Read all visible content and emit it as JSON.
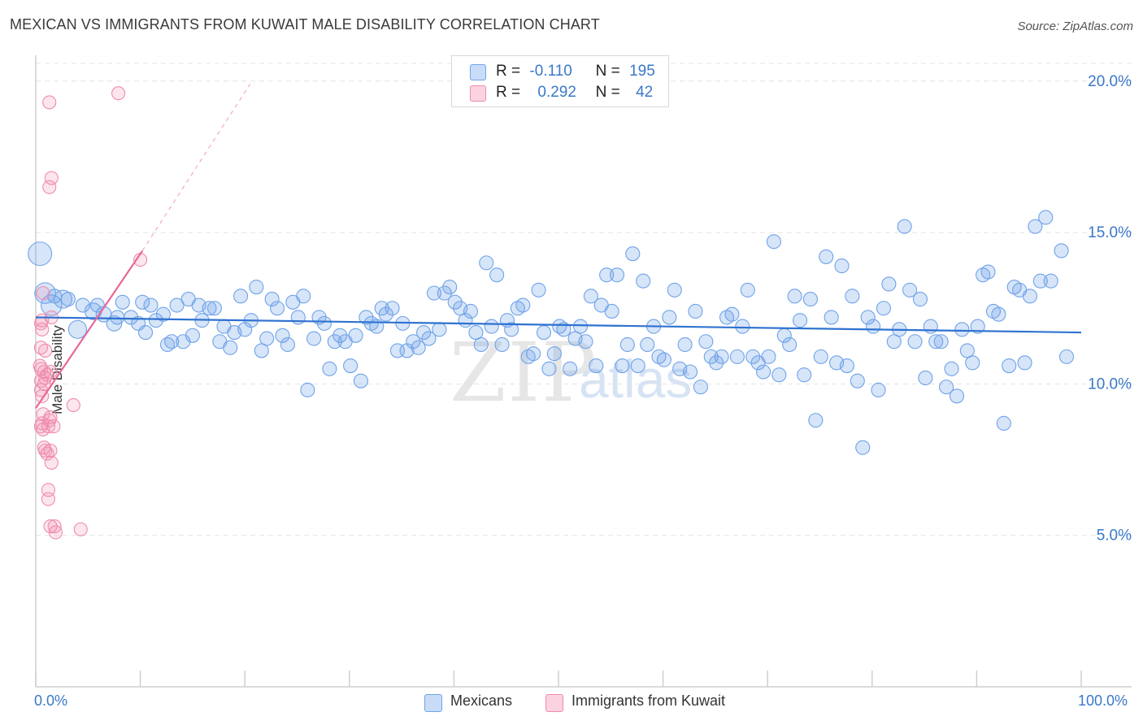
{
  "header": {
    "title": "MEXICAN VS IMMIGRANTS FROM KUWAIT MALE DISABILITY CORRELATION CHART",
    "source": "Source: ZipAtlas.com"
  },
  "watermark": {
    "zip": "ZIP",
    "atlas": "atlas"
  },
  "legend": {
    "rows": [
      {
        "r_label": "R =",
        "r_value": "-0.110",
        "n_label": "N =",
        "n_value": "195",
        "color": "#6fa3e8"
      },
      {
        "r_label": "R =",
        "r_value": "0.292",
        "n_label": "N =",
        "n_value": "42",
        "color": "#f08bab"
      }
    ]
  },
  "bottom_legend": {
    "mexicans": "Mexicans",
    "kuwait": "Immigrants from Kuwait"
  },
  "x_axis": {
    "left_label": "0.0%",
    "right_label": "100.0%"
  },
  "chart_data": {
    "type": "scatter",
    "title": "MEXICAN VS IMMIGRANTS FROM KUWAIT MALE DISABILITY CORRELATION CHART",
    "xlabel": "",
    "ylabel": "Male Disability",
    "xlim": [
      0,
      100
    ],
    "ylim": [
      0,
      20.8
    ],
    "y_ticks": [
      {
        "value": 5,
        "label": "5.0%"
      },
      {
        "value": 10,
        "label": "10.0%"
      },
      {
        "value": 15,
        "label": "15.0%"
      },
      {
        "value": 20,
        "label": "20.0%"
      }
    ],
    "series": [
      {
        "name": "Mexicans",
        "color": "#6fa3e8",
        "R": -0.11,
        "N": 195,
        "trend": {
          "x0": 0,
          "y0": 12.2,
          "x1": 100,
          "y1": 11.7
        },
        "points": [
          [
            0.4,
            14.3,
            1.7
          ],
          [
            0.9,
            13.0,
            1.5
          ],
          [
            1.5,
            12.6,
            1.5
          ],
          [
            2.6,
            12.8,
            1.3
          ],
          [
            4.0,
            11.8,
            1.3
          ],
          [
            5.5,
            12.4,
            1.2
          ],
          [
            6.5,
            12.3,
            1.1
          ],
          [
            7.5,
            12.0,
            1.1
          ],
          [
            1.8,
            12.9,
            1.0
          ],
          [
            3.1,
            12.8,
            1.0
          ],
          [
            4.5,
            12.6,
            1.0
          ],
          [
            5.9,
            12.6,
            1.0
          ],
          [
            7.8,
            12.2,
            1.0
          ],
          [
            8.3,
            12.7,
            1
          ],
          [
            9.1,
            12.2,
            1
          ],
          [
            9.8,
            12.0,
            1
          ],
          [
            10.2,
            12.7,
            1
          ],
          [
            10.5,
            11.7,
            1
          ],
          [
            11.0,
            12.6,
            1
          ],
          [
            11.5,
            12.1,
            1
          ],
          [
            12.2,
            12.3,
            1
          ],
          [
            12.6,
            11.3,
            1
          ],
          [
            13.0,
            11.4,
            1
          ],
          [
            13.5,
            12.6,
            1
          ],
          [
            14.1,
            11.4,
            1
          ],
          [
            14.6,
            12.8,
            1
          ],
          [
            15.0,
            11.6,
            1
          ],
          [
            15.6,
            12.6,
            1
          ],
          [
            15.9,
            12.1,
            1
          ],
          [
            16.6,
            12.5,
            1
          ],
          [
            17.1,
            12.5,
            1
          ],
          [
            17.6,
            11.4,
            1
          ],
          [
            18.0,
            11.9,
            1
          ],
          [
            18.6,
            11.2,
            1
          ],
          [
            19.0,
            11.7,
            1
          ],
          [
            19.6,
            12.9,
            1
          ],
          [
            20.0,
            11.8,
            1
          ],
          [
            20.6,
            12.1,
            1
          ],
          [
            21.1,
            13.2,
            1
          ],
          [
            21.6,
            11.1,
            1
          ],
          [
            22.1,
            11.5,
            1
          ],
          [
            22.6,
            12.8,
            1
          ],
          [
            23.1,
            12.5,
            1
          ],
          [
            23.6,
            11.6,
            1
          ],
          [
            24.1,
            11.3,
            1
          ],
          [
            24.6,
            12.7,
            1
          ],
          [
            25.1,
            12.2,
            1
          ],
          [
            25.6,
            12.9,
            1
          ],
          [
            26.0,
            9.8,
            1
          ],
          [
            26.6,
            11.5,
            1
          ],
          [
            27.1,
            12.2,
            1
          ],
          [
            27.6,
            12.0,
            1
          ],
          [
            28.1,
            10.5,
            1
          ],
          [
            28.6,
            11.4,
            1
          ],
          [
            29.1,
            11.6,
            1
          ],
          [
            29.6,
            11.4,
            1
          ],
          [
            30.1,
            10.6,
            1
          ],
          [
            30.6,
            11.6,
            1
          ],
          [
            31.1,
            10.1,
            1
          ],
          [
            31.6,
            12.2,
            1
          ],
          [
            32.1,
            12.0,
            1
          ],
          [
            32.6,
            11.9,
            1
          ],
          [
            33.1,
            12.5,
            1
          ],
          [
            33.5,
            12.3,
            1
          ],
          [
            34.1,
            12.5,
            1
          ],
          [
            34.6,
            11.1,
            1
          ],
          [
            35.1,
            12.0,
            1
          ],
          [
            35.5,
            11.1,
            1
          ],
          [
            36.1,
            11.4,
            1
          ],
          [
            36.6,
            11.2,
            1
          ],
          [
            37.1,
            11.7,
            1
          ],
          [
            37.6,
            11.5,
            1
          ],
          [
            38.1,
            13.0,
            1
          ],
          [
            38.6,
            11.8,
            1
          ],
          [
            39.1,
            13.0,
            1
          ],
          [
            39.6,
            13.2,
            1
          ],
          [
            40.1,
            12.7,
            1
          ],
          [
            40.6,
            12.5,
            1
          ],
          [
            41.1,
            12.1,
            1
          ],
          [
            41.6,
            12.4,
            1
          ],
          [
            42.1,
            11.7,
            1
          ],
          [
            42.6,
            11.3,
            1
          ],
          [
            43.1,
            14.0,
            1
          ],
          [
            43.6,
            11.9,
            1
          ],
          [
            44.1,
            13.6,
            1
          ],
          [
            44.6,
            11.3,
            1
          ],
          [
            45.1,
            12.1,
            1
          ],
          [
            45.5,
            11.8,
            1
          ],
          [
            46.1,
            12.5,
            1
          ],
          [
            46.6,
            12.6,
            1
          ],
          [
            47.1,
            10.9,
            1
          ],
          [
            47.6,
            11.0,
            1
          ],
          [
            48.1,
            13.1,
            1
          ],
          [
            48.6,
            11.7,
            1
          ],
          [
            49.1,
            10.5,
            1
          ],
          [
            49.6,
            11.0,
            1
          ],
          [
            50.1,
            11.9,
            1
          ],
          [
            50.5,
            11.8,
            1
          ],
          [
            51.1,
            10.5,
            1
          ],
          [
            51.6,
            11.5,
            1
          ],
          [
            52.1,
            11.9,
            1
          ],
          [
            52.6,
            11.4,
            1
          ],
          [
            53.1,
            12.9,
            1
          ],
          [
            53.6,
            10.6,
            1
          ],
          [
            54.1,
            12.6,
            1
          ],
          [
            54.6,
            13.6,
            1
          ],
          [
            55.1,
            12.4,
            1
          ],
          [
            55.6,
            13.6,
            1
          ],
          [
            56.1,
            10.6,
            1
          ],
          [
            56.6,
            11.3,
            1
          ],
          [
            57.1,
            14.3,
            1
          ],
          [
            57.6,
            10.6,
            1
          ],
          [
            58.1,
            13.4,
            1
          ],
          [
            58.5,
            11.3,
            1
          ],
          [
            59.1,
            11.9,
            1
          ],
          [
            59.6,
            10.9,
            1
          ],
          [
            60.1,
            10.8,
            1
          ],
          [
            60.6,
            12.2,
            1
          ],
          [
            61.1,
            13.1,
            1
          ],
          [
            61.6,
            10.5,
            1
          ],
          [
            62.1,
            11.3,
            1
          ],
          [
            62.6,
            10.4,
            1
          ],
          [
            63.1,
            12.4,
            1
          ],
          [
            63.6,
            9.9,
            1
          ],
          [
            64.1,
            11.4,
            1
          ],
          [
            64.6,
            10.9,
            1
          ],
          [
            65.1,
            10.7,
            1
          ],
          [
            65.6,
            10.9,
            1
          ],
          [
            66.1,
            12.2,
            1
          ],
          [
            66.6,
            12.3,
            1
          ],
          [
            67.1,
            10.9,
            1
          ],
          [
            67.6,
            11.9,
            1
          ],
          [
            68.1,
            13.1,
            1
          ],
          [
            68.6,
            10.9,
            1
          ],
          [
            69.1,
            10.7,
            1
          ],
          [
            69.6,
            10.4,
            1
          ],
          [
            70.1,
            10.9,
            1
          ],
          [
            70.6,
            14.7,
            1
          ],
          [
            71.1,
            10.3,
            1
          ],
          [
            71.6,
            11.6,
            1
          ],
          [
            72.1,
            11.3,
            1
          ],
          [
            72.6,
            12.9,
            1
          ],
          [
            73.1,
            12.1,
            1
          ],
          [
            73.5,
            10.3,
            1
          ],
          [
            74.1,
            12.8,
            1
          ],
          [
            74.6,
            8.8,
            1
          ],
          [
            75.1,
            10.9,
            1
          ],
          [
            75.6,
            14.2,
            1
          ],
          [
            76.1,
            12.2,
            1
          ],
          [
            76.6,
            10.7,
            1
          ],
          [
            77.1,
            13.9,
            1
          ],
          [
            77.6,
            10.6,
            1
          ],
          [
            78.1,
            12.9,
            1
          ],
          [
            78.6,
            10.1,
            1
          ],
          [
            79.1,
            7.9,
            1
          ],
          [
            79.6,
            12.2,
            1
          ],
          [
            80.1,
            11.9,
            1
          ],
          [
            80.6,
            9.8,
            1
          ],
          [
            81.1,
            12.5,
            1
          ],
          [
            81.6,
            13.3,
            1
          ],
          [
            82.1,
            11.4,
            1
          ],
          [
            82.6,
            11.8,
            1
          ],
          [
            83.1,
            15.2,
            1
          ],
          [
            83.6,
            13.1,
            1
          ],
          [
            84.1,
            11.4,
            1
          ],
          [
            84.6,
            12.8,
            1
          ],
          [
            85.1,
            10.2,
            1
          ],
          [
            85.6,
            11.9,
            1
          ],
          [
            86.1,
            11.4,
            1
          ],
          [
            86.6,
            11.4,
            1
          ],
          [
            87.1,
            9.9,
            1
          ],
          [
            87.6,
            10.5,
            1
          ],
          [
            88.1,
            9.6,
            1
          ],
          [
            88.6,
            11.8,
            1
          ],
          [
            89.1,
            11.1,
            1
          ],
          [
            89.6,
            10.7,
            1
          ],
          [
            90.1,
            11.9,
            1
          ],
          [
            90.6,
            13.6,
            1
          ],
          [
            91.1,
            13.7,
            1
          ],
          [
            91.6,
            12.4,
            1
          ],
          [
            92.1,
            12.3,
            1
          ],
          [
            92.6,
            8.7,
            1
          ],
          [
            93.1,
            10.6,
            1
          ],
          [
            93.6,
            13.2,
            1
          ],
          [
            94.1,
            13.1,
            1
          ],
          [
            94.6,
            10.7,
            1
          ],
          [
            95.1,
            12.9,
            1
          ],
          [
            95.6,
            15.2,
            1
          ],
          [
            96.1,
            13.4,
            1
          ],
          [
            96.6,
            15.5,
            1
          ],
          [
            97.1,
            13.4,
            1
          ],
          [
            98.1,
            14.4,
            1
          ],
          [
            98.6,
            10.9,
            1
          ]
        ]
      },
      {
        "name": "Immigrants from Kuwait",
        "color": "#f08bab",
        "R": 0.292,
        "N": 42,
        "trend_solid": {
          "x0": 0,
          "y0": 9.2,
          "x1": 10.2,
          "y1": 14.4
        },
        "trend_dashed": {
          "x0": 10.2,
          "y0": 14.4,
          "x1": 20.5,
          "y1": 19.9
        },
        "points": [
          [
            1.3,
            19.3
          ],
          [
            7.9,
            19.6
          ],
          [
            1.5,
            16.8
          ],
          [
            1.3,
            16.5
          ],
          [
            10.0,
            14.1
          ],
          [
            0.7,
            13.0
          ],
          [
            1.5,
            12.2
          ],
          [
            0.5,
            12.0
          ],
          [
            0.6,
            11.8
          ],
          [
            0.5,
            11.2
          ],
          [
            0.4,
            10.6
          ],
          [
            0.9,
            11.1
          ],
          [
            0.5,
            10.5
          ],
          [
            0.8,
            10.4
          ],
          [
            1.1,
            10.3
          ],
          [
            1.4,
            10.4
          ],
          [
            0.5,
            10.1
          ],
          [
            0.8,
            10.0
          ],
          [
            0.5,
            9.8
          ],
          [
            0.6,
            9.6
          ],
          [
            0.7,
            9.0
          ],
          [
            1.4,
            8.9
          ],
          [
            1.3,
            8.8
          ],
          [
            0.5,
            8.6
          ],
          [
            0.7,
            8.5
          ],
          [
            1.2,
            8.6
          ],
          [
            1.7,
            8.6
          ],
          [
            3.6,
            9.3
          ],
          [
            0.8,
            7.9
          ],
          [
            0.9,
            7.8
          ],
          [
            1.1,
            7.7
          ],
          [
            1.4,
            7.8
          ],
          [
            1.5,
            7.4
          ],
          [
            1.2,
            6.5
          ],
          [
            1.2,
            6.2
          ],
          [
            1.4,
            5.3
          ],
          [
            1.8,
            5.3
          ],
          [
            1.9,
            5.1
          ],
          [
            4.3,
            5.2
          ],
          [
            0.6,
            12.1
          ],
          [
            0.9,
            10.2
          ],
          [
            0.6,
            8.7
          ]
        ]
      }
    ]
  }
}
